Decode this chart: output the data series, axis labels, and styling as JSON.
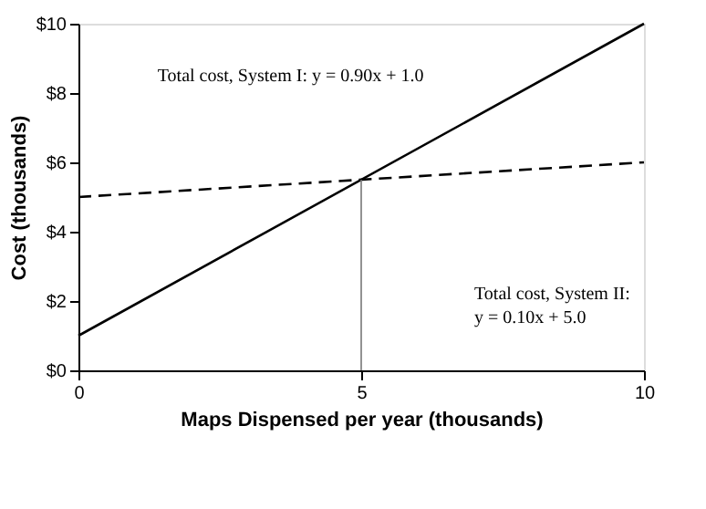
{
  "chart_data": {
    "type": "line",
    "xlabel": "Maps Dispensed per year (thousands)",
    "ylabel": "Cost (thousands)",
    "xlim": [
      0,
      10
    ],
    "xticks": [
      0,
      5,
      10
    ],
    "ylim": [
      0,
      10
    ],
    "yticks": [
      {
        "value": 0,
        "label": "$0"
      },
      {
        "value": 2,
        "label": "$2"
      },
      {
        "value": 4,
        "label": "$4"
      },
      {
        "value": 6,
        "label": "$6"
      },
      {
        "value": 8,
        "label": "$8"
      },
      {
        "value": 10,
        "label": "$10"
      }
    ],
    "grid": false,
    "marker": "none",
    "series": [
      {
        "color": "#000000",
        "line_style": "solid",
        "x": [
          0,
          10
        ],
        "values": [
          1.0,
          10.0
        ]
      },
      {
        "color": "#000000",
        "line_style": "dashed",
        "x": [
          0,
          10
        ],
        "values": [
          5.0,
          6.0
        ]
      },
      {
        "color": "#777777",
        "line_style": "solid",
        "x": [
          5,
          5
        ],
        "values": [
          0,
          5.5
        ]
      }
    ],
    "annotations": [
      "Total cost, System I: y = 0.90x + 1.0",
      "Total cost, System II:\ny = 0.10x + 5.0"
    ]
  }
}
